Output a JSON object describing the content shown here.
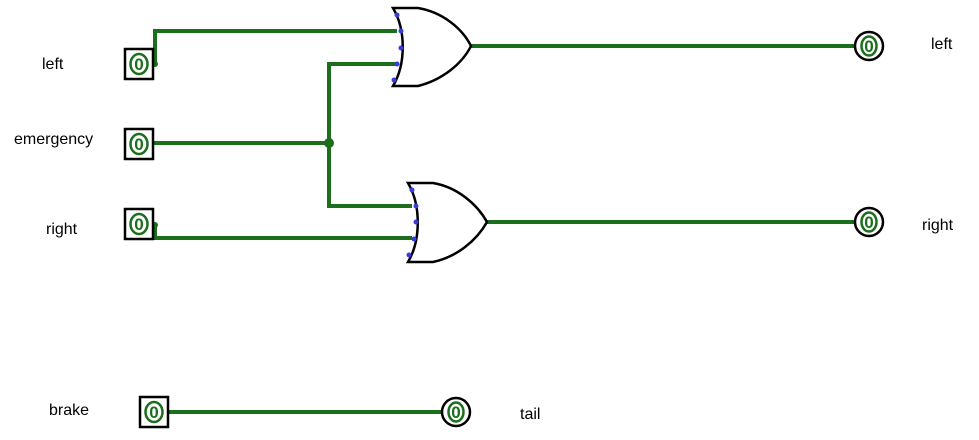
{
  "colors": {
    "wire": "#1b6e1b",
    "pin_dot": "#3a3adf",
    "gate_stroke": "#000000",
    "gate_fill": "#ffffff"
  },
  "inputs": [
    {
      "name": "left",
      "label": "left",
      "value": "0"
    },
    {
      "name": "emergency",
      "label": "emergency",
      "value": "0"
    },
    {
      "name": "right",
      "label": "right",
      "value": "0"
    },
    {
      "name": "brake",
      "label": "brake",
      "value": "0"
    }
  ],
  "outputs": [
    {
      "name": "left",
      "label": "left",
      "value": "0"
    },
    {
      "name": "right",
      "label": "right",
      "value": "0"
    },
    {
      "name": "tail",
      "label": "tail",
      "value": "0"
    }
  ],
  "gates": [
    {
      "name": "or-gate-top",
      "type": "OR",
      "inputs": [
        "left",
        "emergency"
      ],
      "output": "left"
    },
    {
      "name": "or-gate-bottom",
      "type": "OR",
      "inputs": [
        "emergency",
        "right"
      ],
      "output": "right"
    }
  ],
  "direct_connections": [
    {
      "from": "brake",
      "to": "tail"
    }
  ]
}
